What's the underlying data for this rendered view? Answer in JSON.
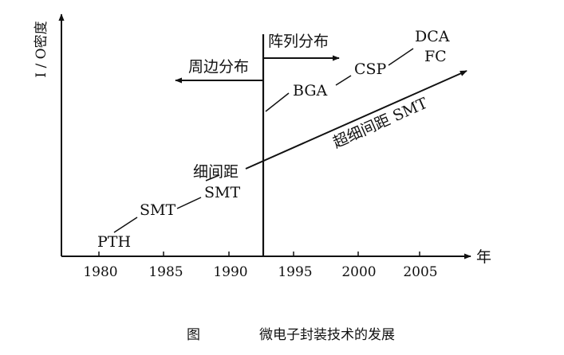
{
  "axes": {
    "x_title": "年",
    "y_title": "I / O密度",
    "x_ticks": [
      "1980",
      "1985",
      "1990",
      "1995",
      "2000",
      "2005"
    ]
  },
  "labels": {
    "pth": "PTH",
    "smt_upper": "SMT",
    "smt_lower": "SMT",
    "fine_pitch": "细间距",
    "bga": "BGA",
    "csp": "CSP",
    "dca": "DCA",
    "fc": "FC",
    "peripheral": "周边分布",
    "array": "阵列分布",
    "ultra_fine_smt": "超细间距 SMT"
  },
  "caption": {
    "prefix": "图",
    "title": "微电子封装技术的发展"
  }
}
